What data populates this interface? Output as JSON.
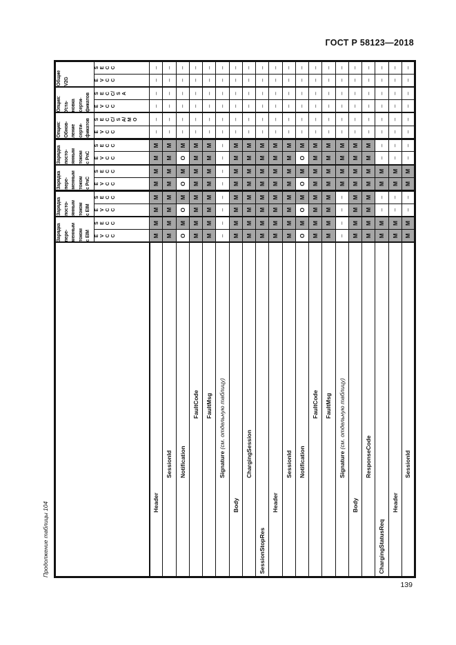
{
  "page": {
    "header_right": "ГОСТ Р 58123—2018",
    "page_number": "139",
    "table_caption": "Продолжение таблицы 104"
  },
  "table": {
    "value_legend": {
      "shaded_mandatory": "М",
      "optional": "О",
      "not_applicable": "–"
    },
    "shade_color": "#a6a6a6",
    "column_groups": [
      {
        "label": "Зарядка переменным током с EIM",
        "label_lines": [
          "Зарядка",
          "пере-",
          "менным",
          "током",
          "с EIM"
        ],
        "sub": [
          "EVCC",
          "SECC"
        ]
      },
      {
        "label": "Зарядка постоянным током с EIM",
        "label_lines": [
          "Зарядка",
          "посто-",
          "янным",
          "током",
          "с EIM"
        ],
        "sub": [
          "EVCC",
          "SECC"
        ]
      },
      {
        "label": "Зарядка переменным током с PnC",
        "label_lines": [
          "Зарядка",
          "пере-",
          "менным",
          "током",
          "с PnC"
        ],
        "sub": [
          "EVCC",
          "SECC"
        ]
      },
      {
        "label": "Зарядка постоянным током с PnC",
        "label_lines": [
          "Зарядка",
          "посто-",
          "янным",
          "током",
          "с PnC"
        ],
        "sub": [
          "EVCC",
          "SECC"
        ]
      },
      {
        "label": "Опция: Обновление сертификатов",
        "label_lines": [
          "Опция:",
          "Обнов-",
          "ление",
          "серти-",
          "фикатов"
        ],
        "sub": [
          "EVCC",
          "SECC/SA/МО"
        ]
      },
      {
        "label": "Опция: Установка сертификатов",
        "label_lines": [
          "Опция:",
          "Уста-",
          "новка",
          "серти-",
          "фикатов"
        ],
        "sub": [
          "EVCC",
          "SECC/SA"
        ]
      },
      {
        "label": "Общие V2G",
        "label_lines": [
          "Общие",
          "V2G"
        ],
        "sub": [
          "EVCC",
          "SECC"
        ]
      }
    ],
    "rows": [
      {
        "label": "Header",
        "indent": 1,
        "values": [
          "М",
          "М",
          "М",
          "М",
          "М",
          "М",
          "М",
          "М",
          "–",
          "–",
          "–",
          "–",
          "–",
          "–"
        ]
      },
      {
        "label": "SessionId",
        "indent": 2,
        "values": [
          "М",
          "М",
          "М",
          "М",
          "М",
          "М",
          "М",
          "М",
          "–",
          "–",
          "–",
          "–",
          "–",
          "–"
        ]
      },
      {
        "label": "Notification",
        "indent": 2,
        "values": [
          "О",
          "М",
          "О",
          "М",
          "О",
          "М",
          "О",
          "М",
          "–",
          "–",
          "–",
          "–",
          "–",
          "–"
        ]
      },
      {
        "label": "FaultCode",
        "indent": 3,
        "values": [
          "М",
          "М",
          "М",
          "М",
          "М",
          "М",
          "М",
          "М",
          "–",
          "–",
          "–",
          "–",
          "–",
          "–"
        ]
      },
      {
        "label": "FaultMsg",
        "indent": 3,
        "values": [
          "М",
          "М",
          "М",
          "М",
          "М",
          "М",
          "М",
          "М",
          "–",
          "–",
          "–",
          "–",
          "–",
          "–"
        ]
      },
      {
        "label": "Signature",
        "note": "(см. отдельную таблицу)",
        "indent": 2,
        "values": [
          "–",
          "–",
          "–",
          "–",
          "–",
          "–",
          "–",
          "–",
          "–",
          "–",
          "–",
          "–",
          "–",
          "–"
        ]
      },
      {
        "label": "Body",
        "indent": 1,
        "values": [
          "М",
          "М",
          "М",
          "М",
          "М",
          "М",
          "М",
          "М",
          "–",
          "–",
          "–",
          "–",
          "–",
          "–"
        ]
      },
      {
        "label": "ChargingSession",
        "indent": 2,
        "values": [
          "М",
          "М",
          "М",
          "М",
          "М",
          "М",
          "М",
          "М",
          "–",
          "–",
          "–",
          "–",
          "–",
          "–"
        ]
      },
      {
        "label": "SessionStopRes",
        "indent": 0,
        "values": [
          "М",
          "М",
          "М",
          "М",
          "М",
          "М",
          "М",
          "М",
          "–",
          "–",
          "–",
          "–",
          "–",
          "–"
        ]
      },
      {
        "label": "Header",
        "indent": 1,
        "values": [
          "М",
          "М",
          "М",
          "М",
          "М",
          "М",
          "М",
          "М",
          "–",
          "–",
          "–",
          "–",
          "–",
          "–"
        ]
      },
      {
        "label": "SessionId",
        "indent": 2,
        "values": [
          "М",
          "М",
          "М",
          "М",
          "М",
          "М",
          "М",
          "М",
          "–",
          "–",
          "–",
          "–",
          "–",
          "–"
        ]
      },
      {
        "label": "Notification",
        "indent": 2,
        "values": [
          "О",
          "М",
          "О",
          "М",
          "О",
          "М",
          "О",
          "М",
          "–",
          "–",
          "–",
          "–",
          "–",
          "–"
        ]
      },
      {
        "label": "FaultCode",
        "indent": 3,
        "values": [
          "М",
          "М",
          "М",
          "М",
          "М",
          "М",
          "М",
          "М",
          "–",
          "–",
          "–",
          "–",
          "–",
          "–"
        ]
      },
      {
        "label": "FaultMsg",
        "indent": 3,
        "values": [
          "М",
          "М",
          "М",
          "М",
          "М",
          "М",
          "М",
          "М",
          "–",
          "–",
          "–",
          "–",
          "–",
          "–"
        ]
      },
      {
        "label": "Signature",
        "note": "(см. отдельную таблицу)",
        "indent": 2,
        "values": [
          "–",
          "–",
          "–",
          "–",
          "М",
          "М",
          "М",
          "М",
          "–",
          "–",
          "–",
          "–",
          "–",
          "–"
        ]
      },
      {
        "label": "Body",
        "indent": 1,
        "values": [
          "М",
          "М",
          "М",
          "М",
          "М",
          "М",
          "М",
          "М",
          "–",
          "–",
          "–",
          "–",
          "–",
          "–"
        ]
      },
      {
        "label": "ResponseCode",
        "indent": 2,
        "values": [
          "М",
          "М",
          "М",
          "М",
          "М",
          "М",
          "М",
          "М",
          "–",
          "–",
          "–",
          "–",
          "–",
          "–"
        ]
      },
      {
        "label": "ChargingStatusReq",
        "indent": 0,
        "values": [
          "М",
          "М",
          "–",
          "–",
          "М",
          "М",
          "–",
          "–",
          "–",
          "–",
          "–",
          "–",
          "–",
          "–"
        ]
      },
      {
        "label": "Header",
        "indent": 1,
        "values": [
          "М",
          "М",
          "–",
          "–",
          "М",
          "М",
          "–",
          "–",
          "–",
          "–",
          "–",
          "–",
          "–",
          "–"
        ]
      },
      {
        "label": "SessionId",
        "indent": 2,
        "values": [
          "М",
          "М",
          "–",
          "–",
          "М",
          "М",
          "–",
          "–",
          "–",
          "–",
          "–",
          "–",
          "–",
          "–"
        ]
      }
    ]
  }
}
